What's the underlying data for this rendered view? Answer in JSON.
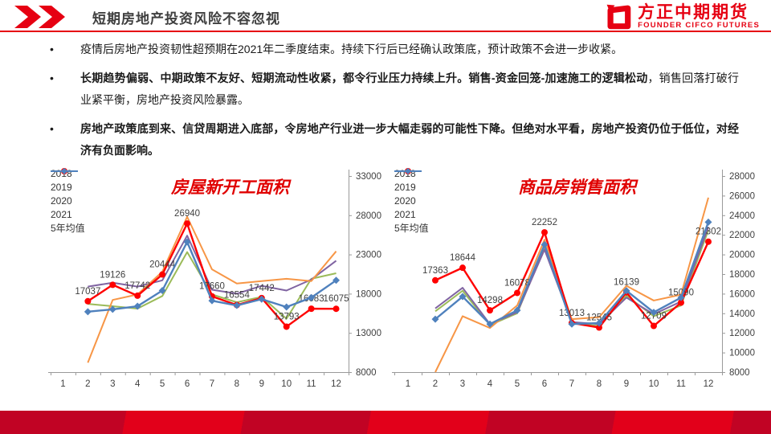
{
  "header": {
    "title": "短期房地产投资风险不容忽视",
    "logo_name": "方正中期期货",
    "logo_subtitle": "FOUNDER CIFCO FUTURES"
  },
  "bullets": [
    {
      "segments": [
        {
          "text": "疫情后房地产投资韧性超预期在2021年二季度结束。持续下行后已经确认政策底，预计政策不会进一步收紧。",
          "bold": false
        }
      ]
    },
    {
      "segments": [
        {
          "text": "长期趋势偏弱、中期政策不友好、短期流动性收紧，都令行业压力持续上升。销售-资金回笼-加速施工的逻辑松动",
          "bold": true
        },
        {
          "text": "，销售回落打破行业紧平衡，房地产投资风险暴露。",
          "bold": false
        }
      ]
    },
    {
      "segments": [
        {
          "text": "房地产政策底到来、信贷周期进入底部，令房地产行业进一步大幅走弱的可能性下降。但绝对水平看，房地产投资仍位于低位，对经济有负面影响。",
          "bold": true
        }
      ]
    }
  ],
  "colors": {
    "accent_red": "#e60012",
    "chart_title_red": "#e00000",
    "axis_text": "#404040",
    "band_dark": "#c10324",
    "band_bright": "#e2001a"
  },
  "chart_data": [
    {
      "type": "line",
      "title": "房屋新开工面积",
      "x": [
        "1",
        "2",
        "3",
        "4",
        "5",
        "6",
        "7",
        "8",
        "9",
        "10",
        "11",
        "12"
      ],
      "ylim": [
        8000,
        33000
      ],
      "yticks": [
        8000,
        13000,
        18000,
        23000,
        28000,
        33000
      ],
      "legend_position": "top-left",
      "grid": false,
      "series": [
        {
          "name": "2018",
          "color": "#9bbb59",
          "marker": "none",
          "values": [
            null,
            16700,
            16400,
            16100,
            17700,
            23300,
            17900,
            16900,
            17600,
            14800,
            19900,
            20600
          ]
        },
        {
          "name": "2019",
          "color": "#8064a2",
          "marker": "none",
          "values": [
            null,
            18900,
            19400,
            18900,
            19700,
            25400,
            18500,
            18000,
            19000,
            18400,
            19800,
            22200
          ]
        },
        {
          "name": "2020",
          "color": "#f79646",
          "marker": "none",
          "values": [
            null,
            9200,
            17200,
            17900,
            20800,
            27800,
            21100,
            19300,
            19600,
            19900,
            19600,
            23400
          ]
        },
        {
          "name": "2021",
          "color": "#ff0000",
          "marker": "circle",
          "data_labels": true,
          "values": [
            null,
            17037,
            19126,
            17742,
            20444,
            26940,
            17660,
            16554,
            17442,
            13793,
            16083,
            16075
          ]
        },
        {
          "name": "5年均值",
          "color": "#4f81bd",
          "marker": "diamond",
          "values": [
            null,
            15700,
            16000,
            16400,
            18400,
            24600,
            17100,
            16500,
            17300,
            16300,
            17500,
            19700
          ]
        }
      ]
    },
    {
      "type": "line",
      "title": "商品房销售面积",
      "x": [
        "1",
        "2",
        "3",
        "4",
        "5",
        "6",
        "7",
        "8",
        "9",
        "10",
        "11",
        "12"
      ],
      "ylim": [
        8000,
        28000
      ],
      "yticks": [
        8000,
        10000,
        12000,
        14000,
        16000,
        18000,
        20000,
        22000,
        24000,
        26000,
        28000
      ],
      "legend_position": "top-left",
      "grid": false,
      "series": [
        {
          "name": "2018",
          "color": "#9bbb59",
          "marker": "none",
          "values": [
            null,
            14200,
            16300,
            12800,
            14000,
            20700,
            13000,
            12700,
            15800,
            13700,
            14800,
            22500
          ]
        },
        {
          "name": "2019",
          "color": "#8064a2",
          "marker": "none",
          "values": [
            null,
            14500,
            16600,
            12900,
            14100,
            20500,
            13100,
            12900,
            15600,
            13900,
            15200,
            22800
          ]
        },
        {
          "name": "2020",
          "color": "#f79646",
          "marker": "none",
          "values": [
            null,
            8000,
            13700,
            12500,
            14800,
            21500,
            13400,
            13600,
            16800,
            15300,
            15900,
            25800
          ]
        },
        {
          "name": "2021",
          "color": "#ff0000",
          "marker": "circle",
          "data_labels": true,
          "values": [
            null,
            17363,
            18644,
            14298,
            16078,
            22252,
            13013,
            12545,
            16139,
            12709,
            15090,
            21302
          ]
        },
        {
          "name": "5年均值",
          "color": "#4f81bd",
          "marker": "diamond",
          "values": [
            null,
            13400,
            15700,
            12900,
            14300,
            21000,
            12900,
            13000,
            16300,
            14100,
            15600,
            23300
          ]
        }
      ]
    }
  ]
}
